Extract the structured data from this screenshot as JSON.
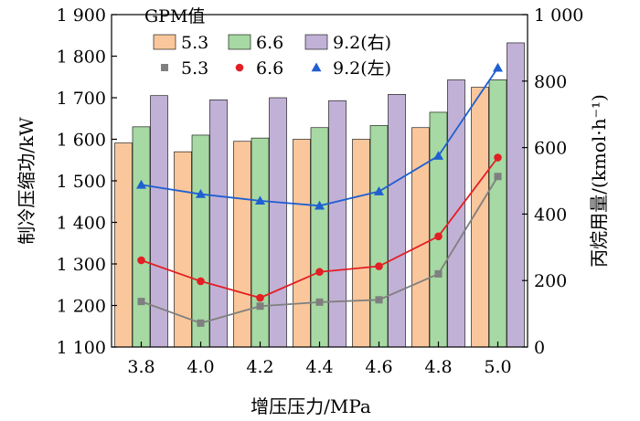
{
  "chart_data": {
    "type": "bar",
    "categories": [
      "3.8",
      "4.0",
      "4.2",
      "4.4",
      "4.6",
      "4.8",
      "5.0"
    ],
    "xlabel": "增压压力/MPa",
    "ylabel": "制冷压缩功/kW",
    "ylabel_right": "丙烷用量/(kmol·h⁻¹)",
    "legend_title": "GPM值",
    "ylim": [
      1100,
      1900
    ],
    "ylim_right": [
      0,
      1000
    ],
    "yticks": [
      "1 100",
      "1 200",
      "1 300",
      "1 400",
      "1 500",
      "1 600",
      "1 700",
      "1 800",
      "1 900"
    ],
    "yticks_right": [
      "0",
      "200",
      "400",
      "600",
      "800",
      "1 000"
    ],
    "grid": false,
    "legend_position": "top",
    "bar_series": [
      {
        "name": "5.3",
        "color": "#F9C79B",
        "values": [
          1591,
          1570,
          1595,
          1600,
          1600,
          1628,
          1725
        ]
      },
      {
        "name": "6.6",
        "color": "#A6D9A3",
        "values": [
          1630,
          1610,
          1603,
          1628,
          1633,
          1665,
          1743
        ]
      },
      {
        "name": "9.2(右)",
        "color": "#C2B1D6",
        "values": [
          1705,
          1695,
          1700,
          1693,
          1708,
          1743,
          1832
        ]
      }
    ],
    "line_series": [
      {
        "name": "5.3",
        "color": "#7F7F7F",
        "marker": "square",
        "values": [
          137,
          72,
          123,
          135,
          142,
          220,
          513
        ]
      },
      {
        "name": "6.6",
        "color": "#E31E24",
        "marker": "circle",
        "values": [
          261,
          198,
          148,
          226,
          243,
          333,
          570
        ]
      },
      {
        "name": "9.2(左)",
        "color": "#1F5FD0",
        "marker": "triangle",
        "values": [
          488,
          460,
          440,
          425,
          468,
          575,
          840
        ]
      }
    ]
  }
}
